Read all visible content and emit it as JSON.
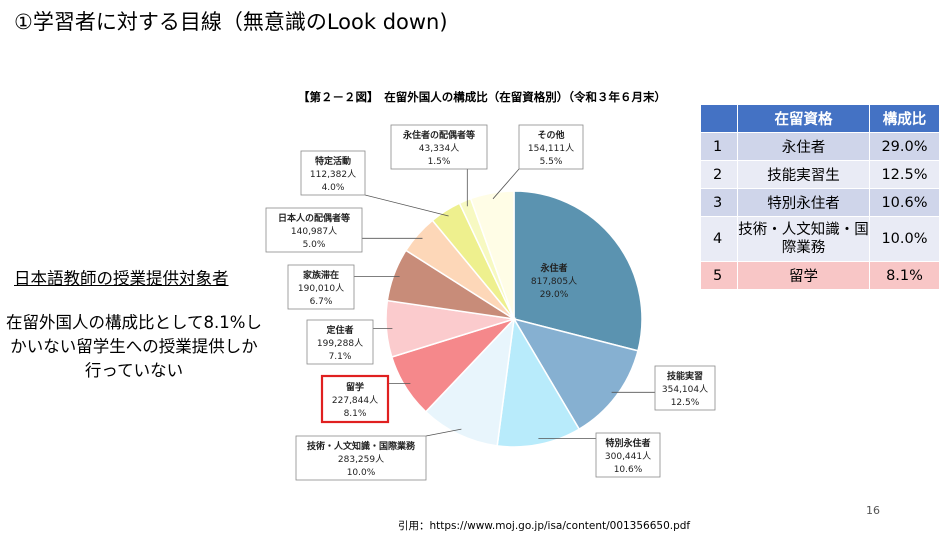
{
  "slide": {
    "title": "①学習者に対する目線（無意識のLook down)",
    "heading": "日本語教師の授業提供対象者",
    "description": "在留外国人の構成比として8.1%しかいない留学生への授業提供しか行っていない",
    "page_number": "16",
    "citation": "引用：https://www.moj.go.jp/isa/content/001356650.pdf"
  },
  "chart_data": {
    "type": "pie",
    "title": "【第２－２図】　在留外国人の構成比（在留資格別）（令和３年６月末）",
    "slices": [
      {
        "label": "永住者",
        "count": "817,805人",
        "pct": "29.0%",
        "value": 29.0,
        "color": "#5b93b0"
      },
      {
        "label": "技能実習",
        "count": "354,104人",
        "pct": "12.5%",
        "value": 12.5,
        "color": "#86b0d1"
      },
      {
        "label": "特別永住者",
        "count": "300,441人",
        "pct": "10.6%",
        "value": 10.6,
        "color": "#b8ebfb"
      },
      {
        "label": "技術・人文知識・国際業務",
        "count": "283,259人",
        "pct": "10.0%",
        "value": 10.0,
        "color": "#e8f5fc"
      },
      {
        "label": "留学",
        "count": "227,844人",
        "pct": "8.1%",
        "value": 8.1,
        "color": "#f5888b"
      },
      {
        "label": "定住者",
        "count": "199,288人",
        "pct": "7.1%",
        "value": 7.1,
        "color": "#fbcbcd"
      },
      {
        "label": "家族滞在",
        "count": "190,010人",
        "pct": "6.7%",
        "value": 6.7,
        "color": "#c88c79"
      },
      {
        "label": "日本人の配偶者等",
        "count": "140,987人",
        "pct": "5.0%",
        "value": 5.0,
        "color": "#fdd7b8"
      },
      {
        "label": "特定活動",
        "count": "112,382人",
        "pct": "4.0%",
        "value": 4.0,
        "color": "#eef08e"
      },
      {
        "label": "永住者の配偶者等",
        "count": "43,334人",
        "pct": "1.5%",
        "value": 1.5,
        "color": "#f7f9c2"
      },
      {
        "label": "その他",
        "count": "154,111人",
        "pct": "5.5%",
        "value": 5.5,
        "color": "#fffde6"
      }
    ],
    "highlight": "留学",
    "highlight_color": "#e02020"
  },
  "table": {
    "headers": [
      "",
      "在留資格",
      "構成比"
    ],
    "rows": [
      {
        "no": "1",
        "status": "永住者",
        "ratio": "29.0%"
      },
      {
        "no": "2",
        "status": "技能実習生",
        "ratio": "12.5%"
      },
      {
        "no": "3",
        "status": "特別永住者",
        "ratio": "10.6%"
      },
      {
        "no": "4",
        "status": "技術・人文知識・国際業務",
        "ratio": "10.0%"
      },
      {
        "no": "5",
        "status": "留学",
        "ratio": "8.1%"
      }
    ],
    "header_color": "#4472c4",
    "highlight_row_color": "#f8c6c6"
  }
}
